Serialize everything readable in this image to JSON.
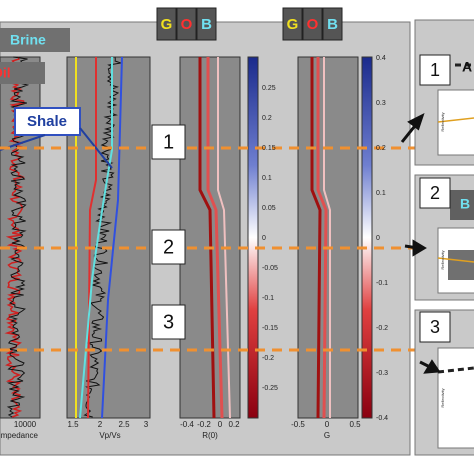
{
  "labels": {
    "brine": "Brine",
    "oil": "Oil",
    "shale": "Shale"
  },
  "gob_left": [
    "G",
    "O",
    "B"
  ],
  "gob_right": [
    "G",
    "O",
    "B"
  ],
  "markers": [
    "1",
    "2",
    "3"
  ],
  "side_markers": [
    "1",
    "2",
    "3"
  ],
  "side_titles": [
    "A",
    "B"
  ],
  "colorbar_r0": [
    "0.25",
    "0.2",
    "0.15",
    "0.1",
    "0.05",
    "0",
    "-0.05",
    "-0.1",
    "-0.15",
    "-0.2",
    "-0.25"
  ],
  "colorbar_g": [
    "0.4",
    "0.3",
    "0.2",
    "0.1",
    "0",
    "-0.1",
    "-0.2",
    "-0.3",
    "-0.4"
  ],
  "axes": [
    {
      "label": "Impedance",
      "ticks": [
        "10000"
      ]
    },
    {
      "label": "Vp/Vs",
      "ticks": [
        "1.5",
        "2",
        "2.5",
        "3"
      ]
    },
    {
      "label": "R(0)",
      "ticks": [
        "-0.4",
        "-0.2",
        "0",
        "0.2"
      ]
    },
    {
      "label": "G",
      "ticks": [
        "-0.5",
        "0",
        "0.5"
      ]
    }
  ],
  "side_axis": "Reflectivity"
}
